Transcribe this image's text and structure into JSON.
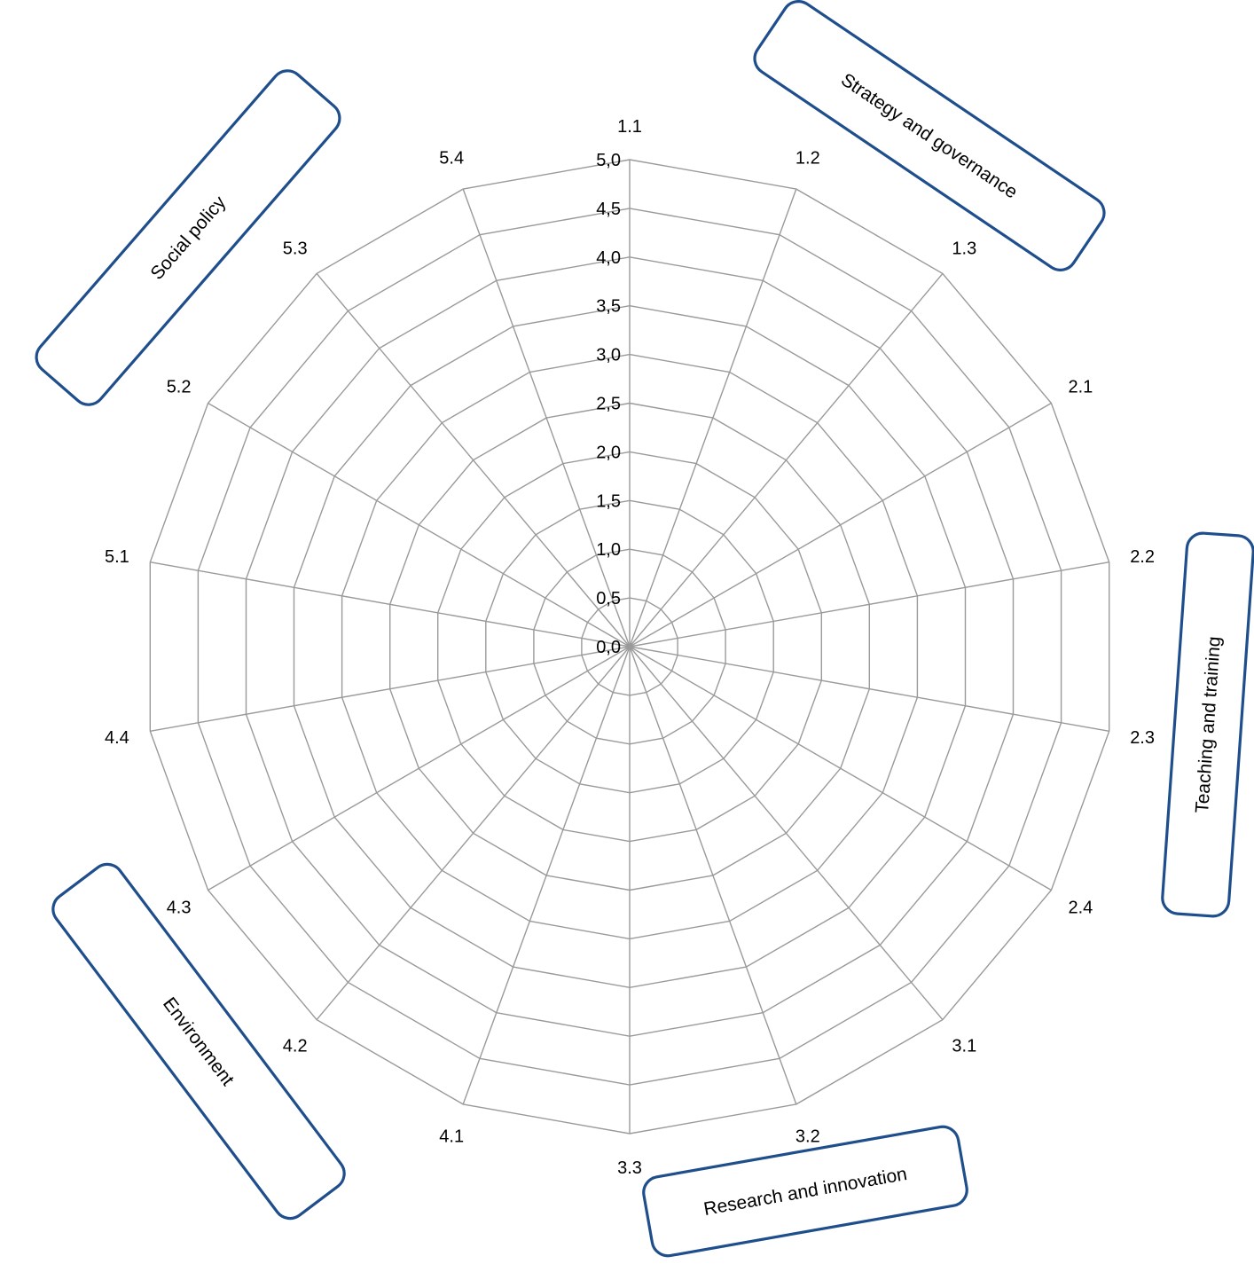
{
  "chart_data": {
    "type": "radar",
    "title": "",
    "axes": [
      "1.1",
      "1.2",
      "1.3",
      "2.1",
      "2.2",
      "2.3",
      "2.4",
      "3.1",
      "3.2",
      "3.3",
      "4.1",
      "4.2",
      "4.3",
      "4.4",
      "5.1",
      "5.2",
      "5.3",
      "5.4"
    ],
    "rlim": [
      0,
      5
    ],
    "ticks": [
      0.0,
      0.5,
      1.0,
      1.5,
      2.0,
      2.5,
      3.0,
      3.5,
      4.0,
      4.5,
      5.0
    ],
    "tick_labels": [
      "0,0",
      "0,5",
      "1,0",
      "1,5",
      "2,0",
      "2,5",
      "3,0",
      "3,5",
      "4,0",
      "4,5",
      "5,0"
    ],
    "series": [],
    "grid": true,
    "categories": [
      {
        "label": "Strategy and governance",
        "axes": [
          "1.1",
          "1.2",
          "1.3"
        ]
      },
      {
        "label": "Teaching and training",
        "axes": [
          "2.1",
          "2.2",
          "2.3",
          "2.4"
        ]
      },
      {
        "label": "Research and innovation",
        "axes": [
          "3.1",
          "3.2",
          "3.3"
        ]
      },
      {
        "label": "Environment",
        "axes": [
          "4.1",
          "4.2",
          "4.3",
          "4.4"
        ]
      },
      {
        "label": "Social policy",
        "axes": [
          "5.1",
          "5.2",
          "5.3",
          "5.4"
        ]
      }
    ]
  },
  "colors": {
    "grid": "#9a9a9a",
    "box_border": "#1f4e8c",
    "text": "#000000"
  }
}
